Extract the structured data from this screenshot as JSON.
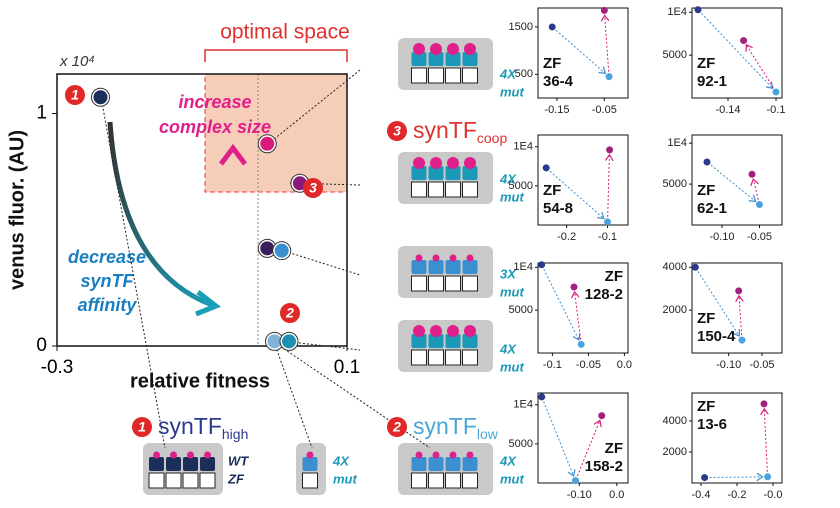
{
  "chart_data": [
    {
      "type": "scatter",
      "x_label": "relative fitness",
      "y_label": "venus fluor. (AU)",
      "y_multiplier": "x 10⁴",
      "xlim": [
        -0.3,
        0.1
      ],
      "ylim": [
        0,
        1.17
      ],
      "xticks": [
        -0.3,
        0.1
      ],
      "yticks": [
        0,
        1
      ],
      "x": [
        -0.24,
        -0.01,
        0.035,
        -0.01,
        0.01,
        0.0,
        0.02
      ],
      "values": [
        1.07,
        0.87,
        0.7,
        0.42,
        0.41,
        0.02,
        0.02
      ],
      "colors": [
        "#1c2f5a",
        "#d81b7a",
        "#8a1a7a",
        "#3a1f5e",
        "#3a8fd0",
        "#7fb4d8",
        "#1e8fb0"
      ],
      "region_title": "optimal space",
      "increase_label": [
        "increase",
        "complex size"
      ],
      "decrease_label": [
        "decrease",
        "synTF",
        "affinity"
      ],
      "plot_badges": [
        "1",
        "3",
        "2"
      ],
      "synTF_labels": [
        {
          "badge": "1",
          "text": "synTF",
          "sub": "high"
        },
        {
          "badge": "2",
          "text": "synTF",
          "sub": "low"
        },
        {
          "badge": "3",
          "text": "synTF",
          "sub": "coop"
        }
      ],
      "mut_labels": [
        [
          "4X",
          "mut"
        ],
        [
          "4X",
          "mut"
        ],
        [
          "3X",
          "mut"
        ],
        [
          "4X",
          "mut"
        ],
        [
          "WT",
          "ZF"
        ],
        [
          "4X",
          "mut"
        ],
        [
          "4X",
          "mut"
        ]
      ]
    },
    {
      "type": "scatter",
      "label_lines": [
        "ZF",
        "36-4"
      ],
      "label_corner": "bottom-left",
      "xlim": [
        -0.19,
        0.0
      ],
      "ylim": [
        0,
        1900
      ],
      "xticks": [
        -0.15,
        -0.05
      ],
      "yticks": [
        500,
        1500
      ],
      "x": [
        -0.16,
        -0.05,
        -0.04
      ],
      "values": [
        1500,
        1850,
        450
      ],
      "colors": [
        "#2a3a8c",
        "#a3207f",
        "#4aa3dc"
      ]
    },
    {
      "type": "scatter",
      "label_lines": [
        "ZF",
        "92-1"
      ],
      "label_corner": "bottom-left",
      "xlim": [
        -0.17,
        -0.095
      ],
      "ylim": [
        0,
        10500
      ],
      "xticks": [
        -0.14,
        -0.1
      ],
      "yticks": [
        5000,
        {
          "value": 10000,
          "label": "1E4"
        }
      ],
      "x": [
        -0.165,
        -0.127,
        -0.1
      ],
      "values": [
        10300,
        6700,
        700
      ],
      "colors": [
        "#2a3a8c",
        "#a3207f",
        "#4aa3dc"
      ]
    },
    {
      "type": "scatter",
      "label_lines": [
        "ZF",
        "54-8"
      ],
      "label_corner": "bottom-left",
      "xlim": [
        -0.27,
        -0.05
      ],
      "ylim": [
        0,
        11500
      ],
      "xticks": [
        -0.2,
        -0.1
      ],
      "yticks": [
        5000,
        {
          "value": 10000,
          "label": "1E4"
        }
      ],
      "x": [
        -0.25,
        -0.095,
        -0.1
      ],
      "values": [
        7300,
        9600,
        400
      ],
      "colors": [
        "#2a3a8c",
        "#a3207f",
        "#4aa3dc"
      ]
    },
    {
      "type": "scatter",
      "label_lines": [
        "ZF",
        "62-1"
      ],
      "label_corner": "bottom-left",
      "xlim": [
        -0.14,
        -0.02
      ],
      "ylim": [
        0,
        11000
      ],
      "xticks": [
        {
          "value": -0.1,
          "label": "-0.10"
        },
        -0.05
      ],
      "yticks": [
        5000,
        {
          "value": 10000,
          "label": "1E4"
        }
      ],
      "x": [
        -0.12,
        -0.06,
        -0.05
      ],
      "values": [
        7700,
        6200,
        2500
      ],
      "colors": [
        "#2a3a8c",
        "#a3207f",
        "#4aa3dc"
      ]
    },
    {
      "type": "scatter",
      "label_lines": [
        "ZF",
        "128-2"
      ],
      "label_corner": "top-right",
      "xlim": [
        -0.12,
        0.005
      ],
      "ylim": [
        0,
        10500
      ],
      "xticks": [
        -0.1,
        -0.05,
        {
          "value": 0,
          "label": "0.0"
        }
      ],
      "yticks": [
        5000,
        {
          "value": 10000,
          "label": "1E4"
        }
      ],
      "x": [
        -0.115,
        -0.07,
        -0.06
      ],
      "values": [
        10300,
        7700,
        1000
      ],
      "colors": [
        "#2a3a8c",
        "#a3207f",
        "#4aa3dc"
      ]
    },
    {
      "type": "scatter",
      "label_lines": [
        "ZF",
        "150-4"
      ],
      "label_corner": "bottom-left",
      "xlim": [
        -0.155,
        -0.02
      ],
      "ylim": [
        0,
        4200
      ],
      "xticks": [
        {
          "value": -0.1,
          "label": "-0.10"
        },
        -0.05
      ],
      "yticks": [
        2000,
        4000
      ],
      "x": [
        -0.15,
        -0.085,
        -0.08
      ],
      "values": [
        4000,
        2900,
        600
      ],
      "colors": [
        "#2a3a8c",
        "#a3207f",
        "#4aa3dc"
      ]
    },
    {
      "type": "scatter",
      "label_lines": [
        "ZF",
        "158-2"
      ],
      "label_corner": "bottom-right",
      "xlim": [
        -0.21,
        0.03
      ],
      "ylim": [
        0,
        11500
      ],
      "xticks": [
        {
          "value": -0.1,
          "label": "-0.10"
        },
        {
          "value": 0,
          "label": "0.0"
        }
      ],
      "yticks": [
        5000,
        {
          "value": 10000,
          "label": "1E4"
        }
      ],
      "x": [
        -0.2,
        -0.04,
        -0.11
      ],
      "values": [
        11000,
        8600,
        300
      ],
      "colors": [
        "#2a3a8c",
        "#a3207f",
        "#4aa3dc"
      ]
    },
    {
      "type": "scatter",
      "label_lines": [
        "ZF",
        "13-6"
      ],
      "label_corner": "top-left",
      "xlim": [
        -0.45,
        0.05
      ],
      "ylim": [
        0,
        5800
      ],
      "xticks": [
        -0.4,
        -0.2,
        {
          "value": 0,
          "label": "-0.0"
        }
      ],
      "yticks": [
        2000,
        4000
      ],
      "x": [
        -0.38,
        -0.05,
        -0.03
      ],
      "values": [
        350,
        5100,
        400
      ],
      "colors": [
        "#2a3a8c",
        "#a3207f",
        "#4aa3dc"
      ]
    }
  ]
}
